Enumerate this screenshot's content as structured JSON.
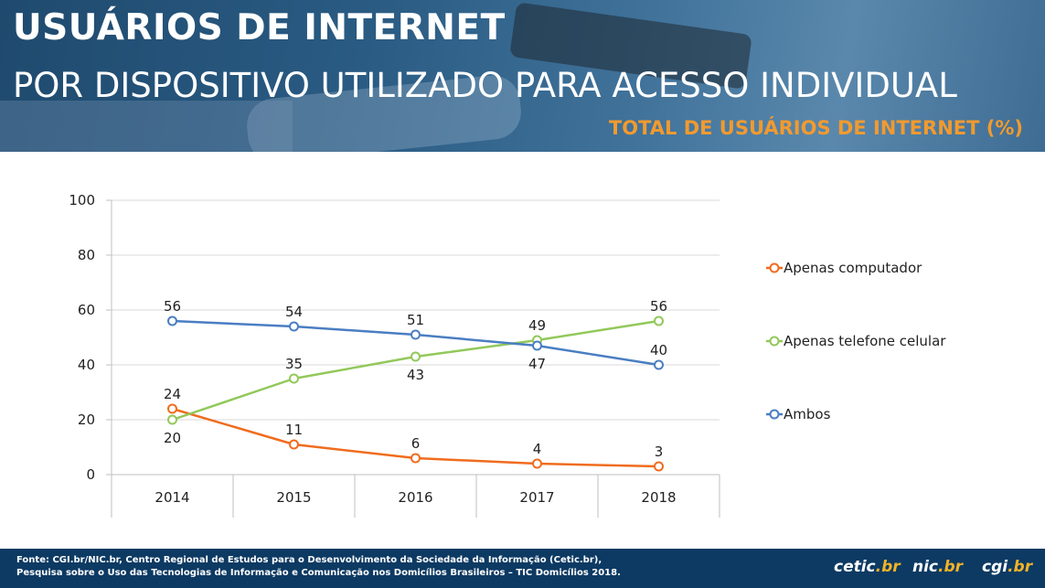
{
  "header": {
    "title": "USUÁRIOS DE INTERNET",
    "subtitle": "POR DISPOSITIVO UTILIZADO PARA ACESSO INDIVIDUAL",
    "measure": "TOTAL DE USUÁRIOS DE INTERNET (%)"
  },
  "chart_data": {
    "type": "line",
    "title": "",
    "xlabel": "",
    "ylabel": "",
    "categories": [
      "2014",
      "2015",
      "2016",
      "2017",
      "2018"
    ],
    "ylim": [
      0,
      100
    ],
    "yticks": [
      0,
      20,
      40,
      60,
      80,
      100
    ],
    "grid": true,
    "legend_position": "right",
    "series": [
      {
        "name": "Apenas computador",
        "color": "#f06c1e",
        "values": [
          24,
          11,
          6,
          4,
          3
        ],
        "label_position": "above"
      },
      {
        "name": "Apenas telefone celular",
        "color": "#92c85a",
        "values": [
          20,
          35,
          43,
          49,
          56
        ],
        "label_position": "mixed"
      },
      {
        "name": "Ambos",
        "color": "#4a7ec2",
        "values": [
          56,
          54,
          51,
          47,
          40
        ],
        "label_position": "mixed"
      }
    ]
  },
  "footer": {
    "source_line1": "Fonte: CGI.br/NIC.br, Centro Regional de Estudos para o Desenvolvimento da Sociedade da Informação (Cetic.br),",
    "source_line2": "Pesquisa sobre o Uso das Tecnologias de Informação e Comunicação nos Domicílios Brasileiros – TIC Domicílios 2018.",
    "logo_cetic_main": "cetic",
    "logo_cetic_accent": ".br",
    "logo_nic_main": "nic",
    "logo_nic_accent": ".br",
    "logo_cgi_main": "cgi",
    "logo_cgi_accent": ".br"
  }
}
